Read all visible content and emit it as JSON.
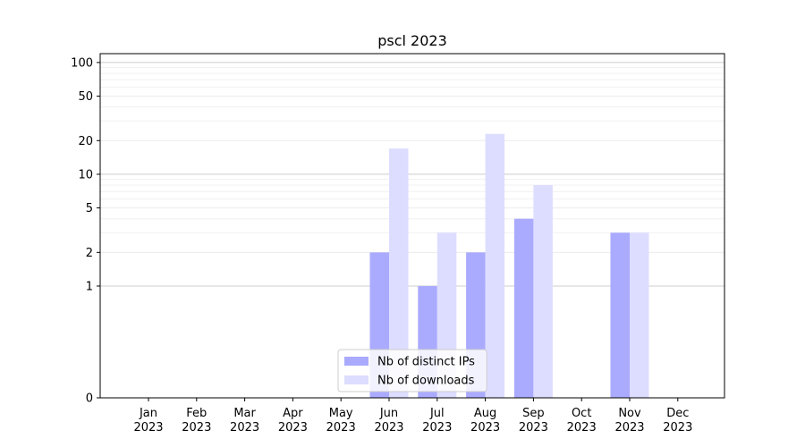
{
  "chart_data": {
    "type": "bar",
    "title": "pscl 2023",
    "xlabel": "",
    "ylabel": "",
    "y_scale": "symlog",
    "ylim": [
      0,
      120
    ],
    "y_ticks": [
      0,
      1,
      2,
      5,
      10,
      20,
      50,
      100
    ],
    "categories": [
      [
        "Jan",
        "2023"
      ],
      [
        "Feb",
        "2023"
      ],
      [
        "Mar",
        "2023"
      ],
      [
        "Apr",
        "2023"
      ],
      [
        "May",
        "2023"
      ],
      [
        "Jun",
        "2023"
      ],
      [
        "Jul",
        "2023"
      ],
      [
        "Aug",
        "2023"
      ],
      [
        "Sep",
        "2023"
      ],
      [
        "Oct",
        "2023"
      ],
      [
        "Nov",
        "2023"
      ],
      [
        "Dec",
        "2023"
      ]
    ],
    "series": [
      {
        "name": "Nb of distinct IPs",
        "color": "#aaaaff",
        "values": [
          0,
          0,
          0,
          0,
          0,
          2,
          1,
          2,
          4,
          0,
          3,
          0
        ]
      },
      {
        "name": "Nb of downloads",
        "color": "#ddddff",
        "values": [
          0,
          0,
          0,
          0,
          0,
          17,
          3,
          23,
          8,
          0,
          3,
          0
        ]
      }
    ],
    "grid": true,
    "legend_position": "bottom-center"
  }
}
